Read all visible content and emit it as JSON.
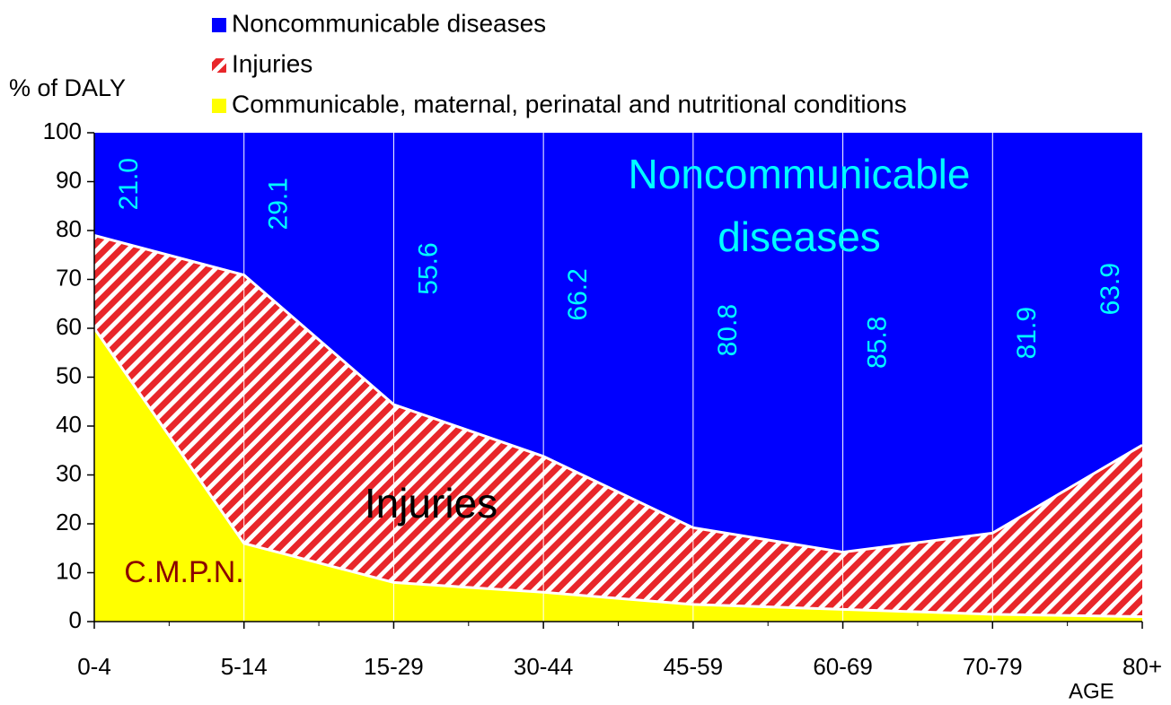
{
  "chart_data": {
    "type": "stacked-area",
    "y_label": "% of DALY",
    "x_label": "AGE",
    "categories": [
      "0-4",
      "5-14",
      "15-29",
      "30-44",
      "45-59",
      "60-69",
      "70-79",
      "80+"
    ],
    "series": [
      {
        "name": "Noncommunicable diseases",
        "color": "#0000ff",
        "values": [
          21.0,
          29.1,
          55.6,
          66.2,
          80.8,
          85.8,
          81.9,
          63.9
        ],
        "value_labels": [
          "21.0",
          "29.1",
          "55.6",
          "66.2",
          "80.8",
          "85.8",
          "81.9",
          "63.9"
        ],
        "label_color": "#00ffff"
      },
      {
        "name": "Injuries",
        "color": "#e8262a",
        "hatch": true,
        "values": [
          19,
          54.9,
          36.4,
          27.8,
          15.7,
          11.7,
          16.6,
          35.1
        ]
      },
      {
        "name": "Communicable, maternal, perinatal and nutritional conditions",
        "color": "#ffff00",
        "values": [
          60,
          16,
          8,
          6,
          3.5,
          2.5,
          1.5,
          1
        ]
      }
    ],
    "annotations": [
      {
        "lines": [
          "Noncommunicable",
          "diseases"
        ],
        "color": "#00ffff"
      },
      {
        "lines": [
          "Injuries"
        ],
        "color": "#000000"
      },
      {
        "lines": [
          "C.M.P.N."
        ],
        "color": "#8b0000"
      }
    ],
    "ylim": [
      0,
      100
    ],
    "yticks": [
      0,
      10,
      20,
      30,
      40,
      50,
      60,
      70,
      80,
      90,
      100
    ],
    "grid": true
  }
}
